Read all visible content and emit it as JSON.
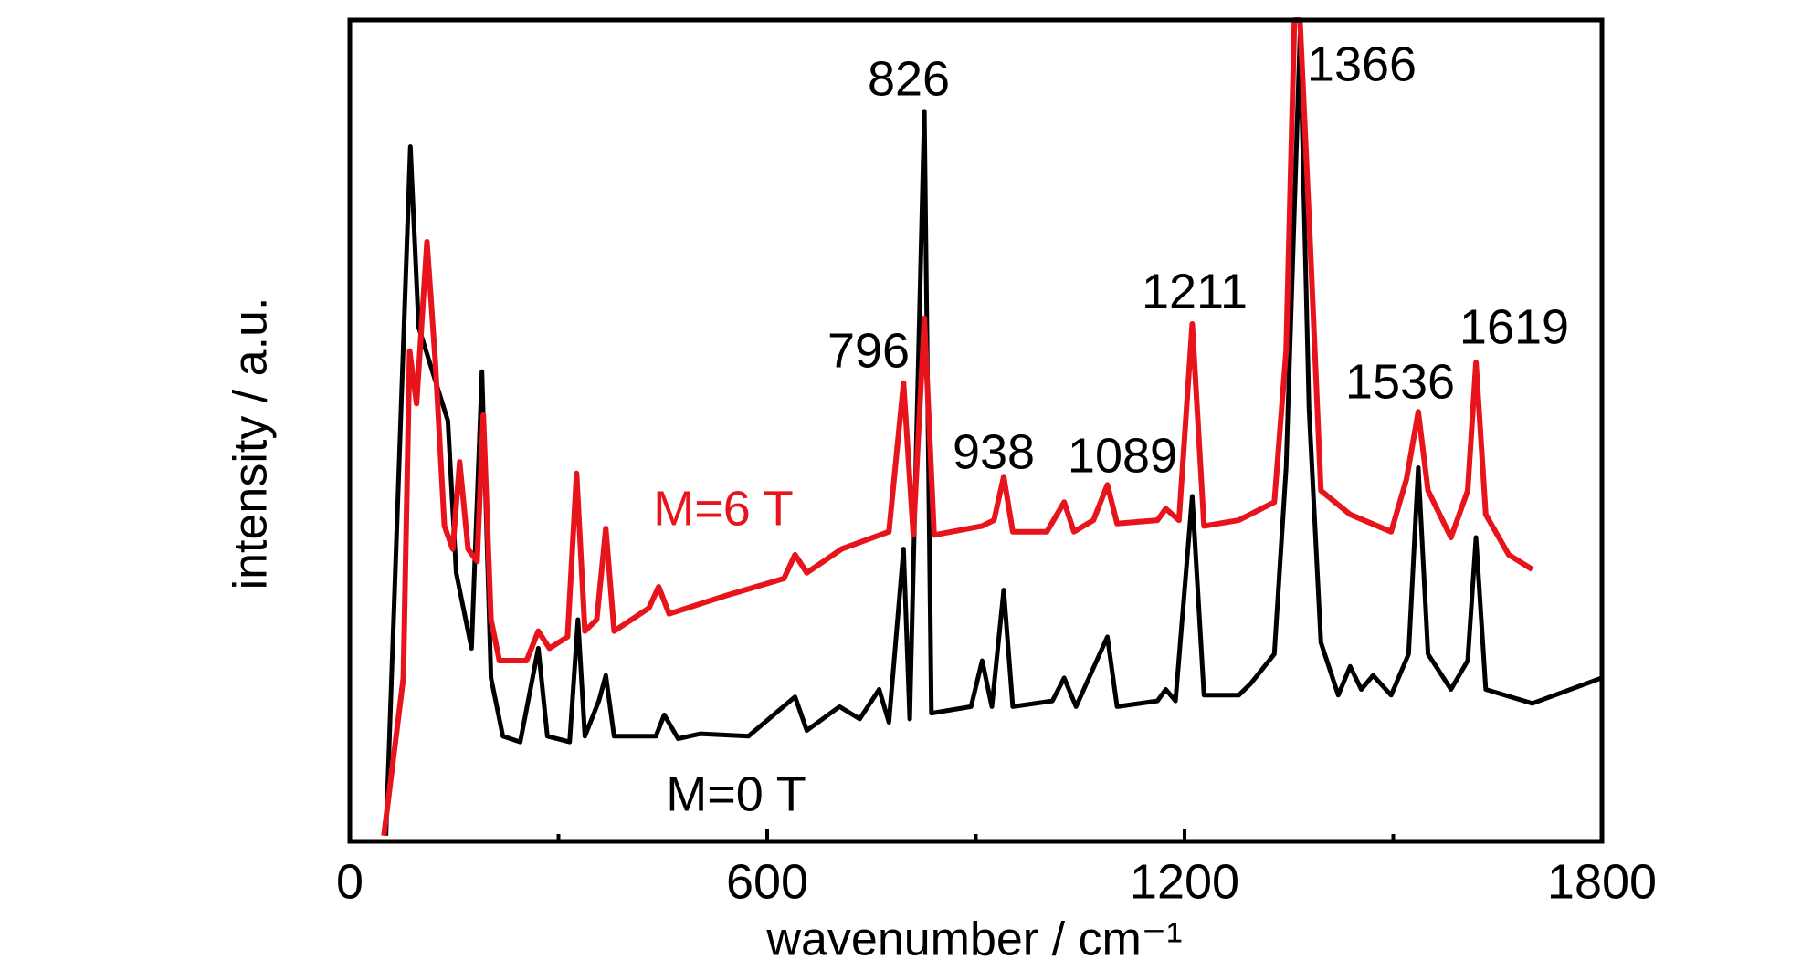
{
  "chart_data": {
    "type": "line",
    "xlabel": "wavenumber / cm⁻¹",
    "ylabel": "intensity / a.u.",
    "xlim": [
      0,
      1800
    ],
    "xticks": [
      0,
      600,
      1200,
      1800
    ],
    "xminor_ticks": [
      300,
      900,
      1500
    ],
    "ylim": [
      0,
      100
    ],
    "grid": false,
    "series": [
      {
        "name": "M=0 T",
        "color": "#000000",
        "x": [
          52,
          87,
          99,
          141,
          153,
          175,
          190,
          203,
          220,
          245,
          271,
          284,
          316,
          328,
          338,
          358,
          368,
          380,
          440,
          452,
          472,
          504,
          573,
          640,
          657,
          704,
          733,
          761,
          775,
          796,
          805,
          826,
          836,
          893,
          909,
          923,
          940,
          953,
          1010,
          1027,
          1044,
          1089,
          1103,
          1161,
          1173,
          1187,
          1211,
          1228,
          1278,
          1295,
          1329,
          1346,
          1366,
          1379,
          1396,
          1421,
          1438,
          1454,
          1471,
          1497,
          1522,
          1536,
          1550,
          1583,
          1607,
          1619,
          1633,
          1700,
          1800
        ],
        "values": [
          0.7,
          84.6,
          62.6,
          51.2,
          32.7,
          23.5,
          57.2,
          19.9,
          12.8,
          12.1,
          23.5,
          12.8,
          12.1,
          27.0,
          12.8,
          17.1,
          20.2,
          12.8,
          12.8,
          15.4,
          12.5,
          13.1,
          12.8,
          17.6,
          13.5,
          16.4,
          14.9,
          18.5,
          14.5,
          35.6,
          14.9,
          88.9,
          15.6,
          16.4,
          22.0,
          16.4,
          30.6,
          16.4,
          17.1,
          19.9,
          16.4,
          24.9,
          16.4,
          17.1,
          18.5,
          17.1,
          42.0,
          17.8,
          17.8,
          19.2,
          22.8,
          45.5,
          98.2,
          52.6,
          24.2,
          17.8,
          21.3,
          18.5,
          20.2,
          17.8,
          22.8,
          45.5,
          22.8,
          18.5,
          22.0,
          37.0,
          18.5,
          16.8,
          19.9
        ]
      },
      {
        "name": "M=6 T",
        "color": "#e8141c",
        "x": [
          49,
          77,
          86,
          96,
          111,
          123,
          136,
          148,
          158,
          170,
          183,
          192,
          203,
          215,
          254,
          271,
          287,
          313,
          326,
          338,
          355,
          368,
          380,
          430,
          444,
          459,
          540,
          624,
          640,
          657,
          707,
          775,
          796,
          810,
          826,
          840,
          909,
          926,
          940,
          953,
          1002,
          1027,
          1041,
          1069,
          1089,
          1103,
          1161,
          1173,
          1192,
          1211,
          1228,
          1278,
          1329,
          1346,
          1358,
          1366,
          1380,
          1396,
          1438,
          1497,
          1519,
          1536,
          1550,
          1583,
          1607,
          1619,
          1633,
          1666,
          1700
        ],
        "values": [
          0.7,
          19.9,
          59.7,
          53.3,
          73.0,
          58.3,
          38.4,
          35.6,
          46.2,
          35.6,
          34.1,
          51.9,
          27.0,
          22.0,
          22.0,
          25.6,
          23.5,
          24.9,
          44.8,
          25.6,
          27.0,
          38.1,
          25.6,
          28.4,
          31.0,
          27.7,
          29.9,
          32.0,
          34.9,
          32.7,
          35.6,
          37.7,
          55.8,
          37.3,
          63.7,
          37.3,
          38.4,
          39.1,
          44.4,
          37.7,
          37.7,
          41.3,
          37.7,
          39.1,
          43.4,
          38.7,
          39.1,
          40.5,
          39.1,
          63.0,
          38.4,
          39.1,
          41.3,
          59.7,
          100,
          100,
          74.0,
          42.7,
          39.8,
          37.7,
          44.1,
          52.3,
          42.7,
          37.0,
          42.7,
          58.3,
          39.8,
          34.9,
          33.1
        ]
      }
    ],
    "annotations": [
      {
        "text": "826"
      },
      {
        "text": "1366"
      },
      {
        "text": "1211"
      },
      {
        "text": "796"
      },
      {
        "text": "938"
      },
      {
        "text": "1089"
      },
      {
        "text": "1536"
      },
      {
        "text": "1619"
      }
    ]
  }
}
